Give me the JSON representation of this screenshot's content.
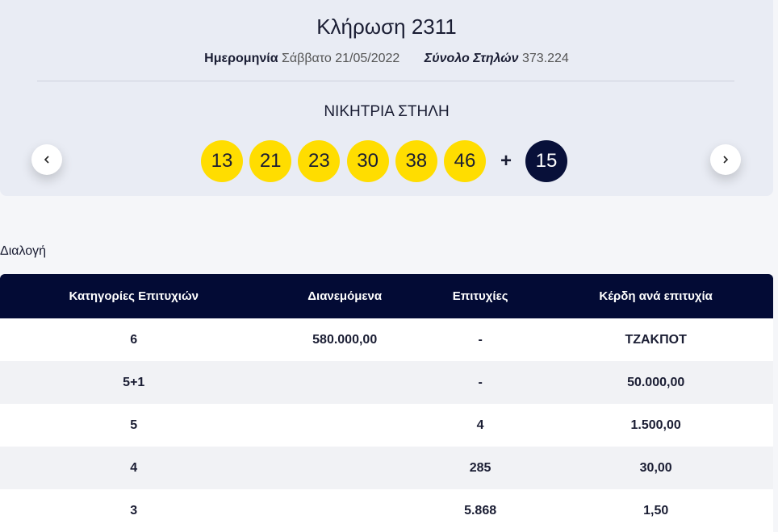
{
  "draw": {
    "title": "Κλήρωση 2311",
    "date_label": "Ημερομηνία",
    "date": "Σάββατο 21/05/2022",
    "total_label": "Σύνολο Στηλών",
    "total": "373.224",
    "winning_label": "ΝΙΚΗΤΡΙΑ ΣΤΗΛΗ",
    "numbers": [
      13,
      21,
      23,
      30,
      38,
      46
    ],
    "plus": "+",
    "bonus": 15
  },
  "section": {
    "title": "Διαλογή"
  },
  "table": {
    "headers": [
      "Κατηγορίες Επιτυχιών",
      "Διανεμόμενα",
      "Επιτυχίες",
      "Κέρδη ανά επιτυχία"
    ],
    "rows": [
      [
        "6",
        "580.000,00",
        "-",
        "ΤΖΑΚΠΟΤ"
      ],
      [
        "5+1",
        null,
        "-",
        "50.000,00"
      ],
      [
        "5",
        null,
        "4",
        "1.500,00"
      ],
      [
        "4",
        null,
        "285",
        "30,00"
      ],
      [
        "3",
        null,
        "5.868",
        "1,50"
      ]
    ]
  }
}
